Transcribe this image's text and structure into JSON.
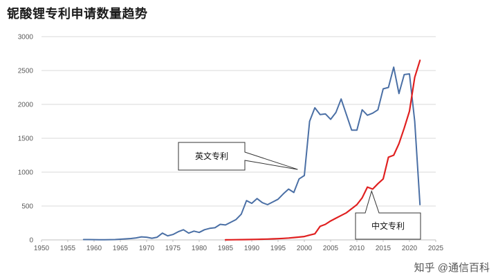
{
  "title": "铌酸锂专利申请数量趋势",
  "watermark": "知乎 @通信百科",
  "chart_data": {
    "type": "line",
    "title": "铌酸锂专利申请数量趋势",
    "xlabel": "",
    "ylabel": "",
    "xlim": [
      1950,
      2025
    ],
    "ylim": [
      0,
      3000
    ],
    "x_ticks": [
      1950,
      1955,
      1960,
      1965,
      1970,
      1975,
      1980,
      1985,
      1990,
      1995,
      2000,
      2005,
      2010,
      2015,
      2020,
      2025
    ],
    "y_ticks": [
      0,
      500,
      1000,
      1500,
      2000,
      2500,
      3000
    ],
    "grid": "horizontal",
    "series": [
      {
        "name": "英文专利",
        "color": "#4a6fa5",
        "x": [
          1958,
          1959,
          1960,
          1961,
          1962,
          1963,
          1964,
          1965,
          1966,
          1967,
          1968,
          1969,
          1970,
          1971,
          1972,
          1973,
          1974,
          1975,
          1976,
          1977,
          1978,
          1979,
          1980,
          1981,
          1982,
          1983,
          1984,
          1985,
          1986,
          1987,
          1988,
          1989,
          1990,
          1991,
          1992,
          1993,
          1994,
          1995,
          1996,
          1997,
          1998,
          1999,
          2000,
          2001,
          2002,
          2003,
          2004,
          2005,
          2006,
          2007,
          2008,
          2009,
          2010,
          2011,
          2012,
          2013,
          2014,
          2015,
          2016,
          2017,
          2018,
          2019,
          2020,
          2021,
          2022
        ],
        "y": [
          5,
          5,
          4,
          3,
          3,
          4,
          5,
          10,
          15,
          20,
          30,
          45,
          40,
          25,
          40,
          100,
          60,
          80,
          120,
          150,
          100,
          130,
          110,
          150,
          170,
          180,
          230,
          220,
          260,
          300,
          380,
          580,
          540,
          610,
          550,
          520,
          560,
          600,
          680,
          750,
          700,
          900,
          950,
          1750,
          1950,
          1850,
          1860,
          1780,
          1880,
          2080,
          1850,
          1620,
          1620,
          1920,
          1840,
          1870,
          1920,
          2230,
          2250,
          2550,
          2160,
          2440,
          2450,
          1750,
          520
        ]
      },
      {
        "name": "中文专利",
        "color": "#e02020",
        "x": [
          1985,
          1986,
          1987,
          1988,
          1989,
          1990,
          1991,
          1992,
          1993,
          1994,
          1995,
          1996,
          1997,
          1998,
          1999,
          2000,
          2001,
          2002,
          2003,
          2004,
          2005,
          2006,
          2007,
          2008,
          2009,
          2010,
          2011,
          2012,
          2013,
          2014,
          2015,
          2016,
          2017,
          2018,
          2019,
          2020,
          2021,
          2022
        ],
        "y": [
          1,
          2,
          3,
          4,
          5,
          6,
          8,
          10,
          12,
          15,
          18,
          22,
          28,
          35,
          42,
          50,
          70,
          90,
          200,
          230,
          280,
          320,
          360,
          400,
          460,
          520,
          620,
          780,
          750,
          830,
          900,
          1220,
          1250,
          1420,
          1650,
          1900,
          2400,
          2650
        ]
      }
    ],
    "annotations": [
      {
        "text": "英文专利",
        "series": "英文专利"
      },
      {
        "text": "中文专利",
        "series": "中文专利"
      }
    ]
  }
}
